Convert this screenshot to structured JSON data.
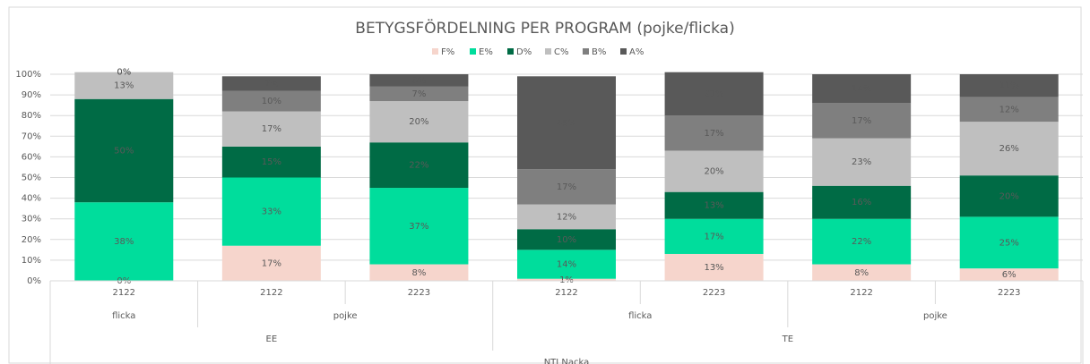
{
  "chart_data": {
    "type": "stacked_bar",
    "title": "BETYGSFÖRDELNING PER PROGRAM (pojke/flicka)",
    "categories": [
      "2122",
      "2122",
      "2223",
      "2122",
      "2223",
      "2122",
      "2223"
    ],
    "category_levels": [
      {
        "labels": [
          "flicka",
          "pojke",
          "flicka",
          "pojke"
        ],
        "counts": [
          1,
          2,
          2,
          2
        ]
      },
      {
        "labels": [
          "EE",
          "TE"
        ],
        "counts": [
          3,
          4
        ]
      },
      {
        "labels": [
          "NTI Nacka"
        ],
        "counts": [
          7
        ]
      }
    ],
    "series": [
      {
        "name": "F%",
        "color": "#f6d5cc",
        "label_color": "#595959",
        "values": [
          0,
          17,
          8,
          1,
          13,
          8,
          6
        ],
        "value_labels": [
          "0%",
          "17%",
          "8%",
          "1%",
          "13%",
          "8%",
          "6%"
        ]
      },
      {
        "name": "E%",
        "color": "#00dd9c",
        "label_color": "#404040",
        "values": [
          38,
          33,
          37,
          14,
          17,
          22,
          25
        ],
        "value_labels": [
          "38%",
          "33%",
          "37%",
          "14%",
          "17%",
          "22%",
          "25%"
        ]
      },
      {
        "name": "D%",
        "color": "#006b45",
        "label_color": "#ffffff",
        "values": [
          50,
          15,
          22,
          10,
          13,
          16,
          20
        ],
        "value_labels": [
          "50%",
          "15%",
          "22%",
          "10%",
          "13%",
          "16%",
          "20%"
        ]
      },
      {
        "name": "C%",
        "color": "#bfbfbf",
        "label_color": "#404040",
        "values": [
          13,
          17,
          20,
          12,
          20,
          23,
          26
        ],
        "value_labels": [
          "13%",
          "17%",
          "20%",
          "12%",
          "20%",
          "23%",
          "26%"
        ]
      },
      {
        "name": "B%",
        "color": "#7f7f7f",
        "label_color": "#ffffff",
        "values": [
          0,
          10,
          7,
          17,
          17,
          17,
          12
        ],
        "value_labels": [
          "0%",
          "10%",
          "7%",
          "17%",
          "17%",
          "17%",
          "12%"
        ]
      },
      {
        "name": "A%",
        "color": "#595959",
        "label_color": "#ffffff",
        "values": [
          0,
          7,
          6,
          45,
          21,
          14,
          11
        ],
        "value_labels": [
          "0%",
          "7%",
          "6%",
          "45%",
          "21%",
          "14%",
          "11%"
        ]
      }
    ],
    "ylim": [
      0,
      100
    ],
    "yticks": [
      {
        "value": 0,
        "label": "0%"
      },
      {
        "value": 10,
        "label": "10%"
      },
      {
        "value": 20,
        "label": "20%"
      },
      {
        "value": 30,
        "label": "30%"
      },
      {
        "value": 40,
        "label": "40%"
      },
      {
        "value": 50,
        "label": "50%"
      },
      {
        "value": 60,
        "label": "60%"
      },
      {
        "value": 70,
        "label": "70%"
      },
      {
        "value": 80,
        "label": "80%"
      },
      {
        "value": 90,
        "label": "90%"
      },
      {
        "value": 100,
        "label": "100%"
      }
    ],
    "grid": true,
    "legend": "top"
  }
}
